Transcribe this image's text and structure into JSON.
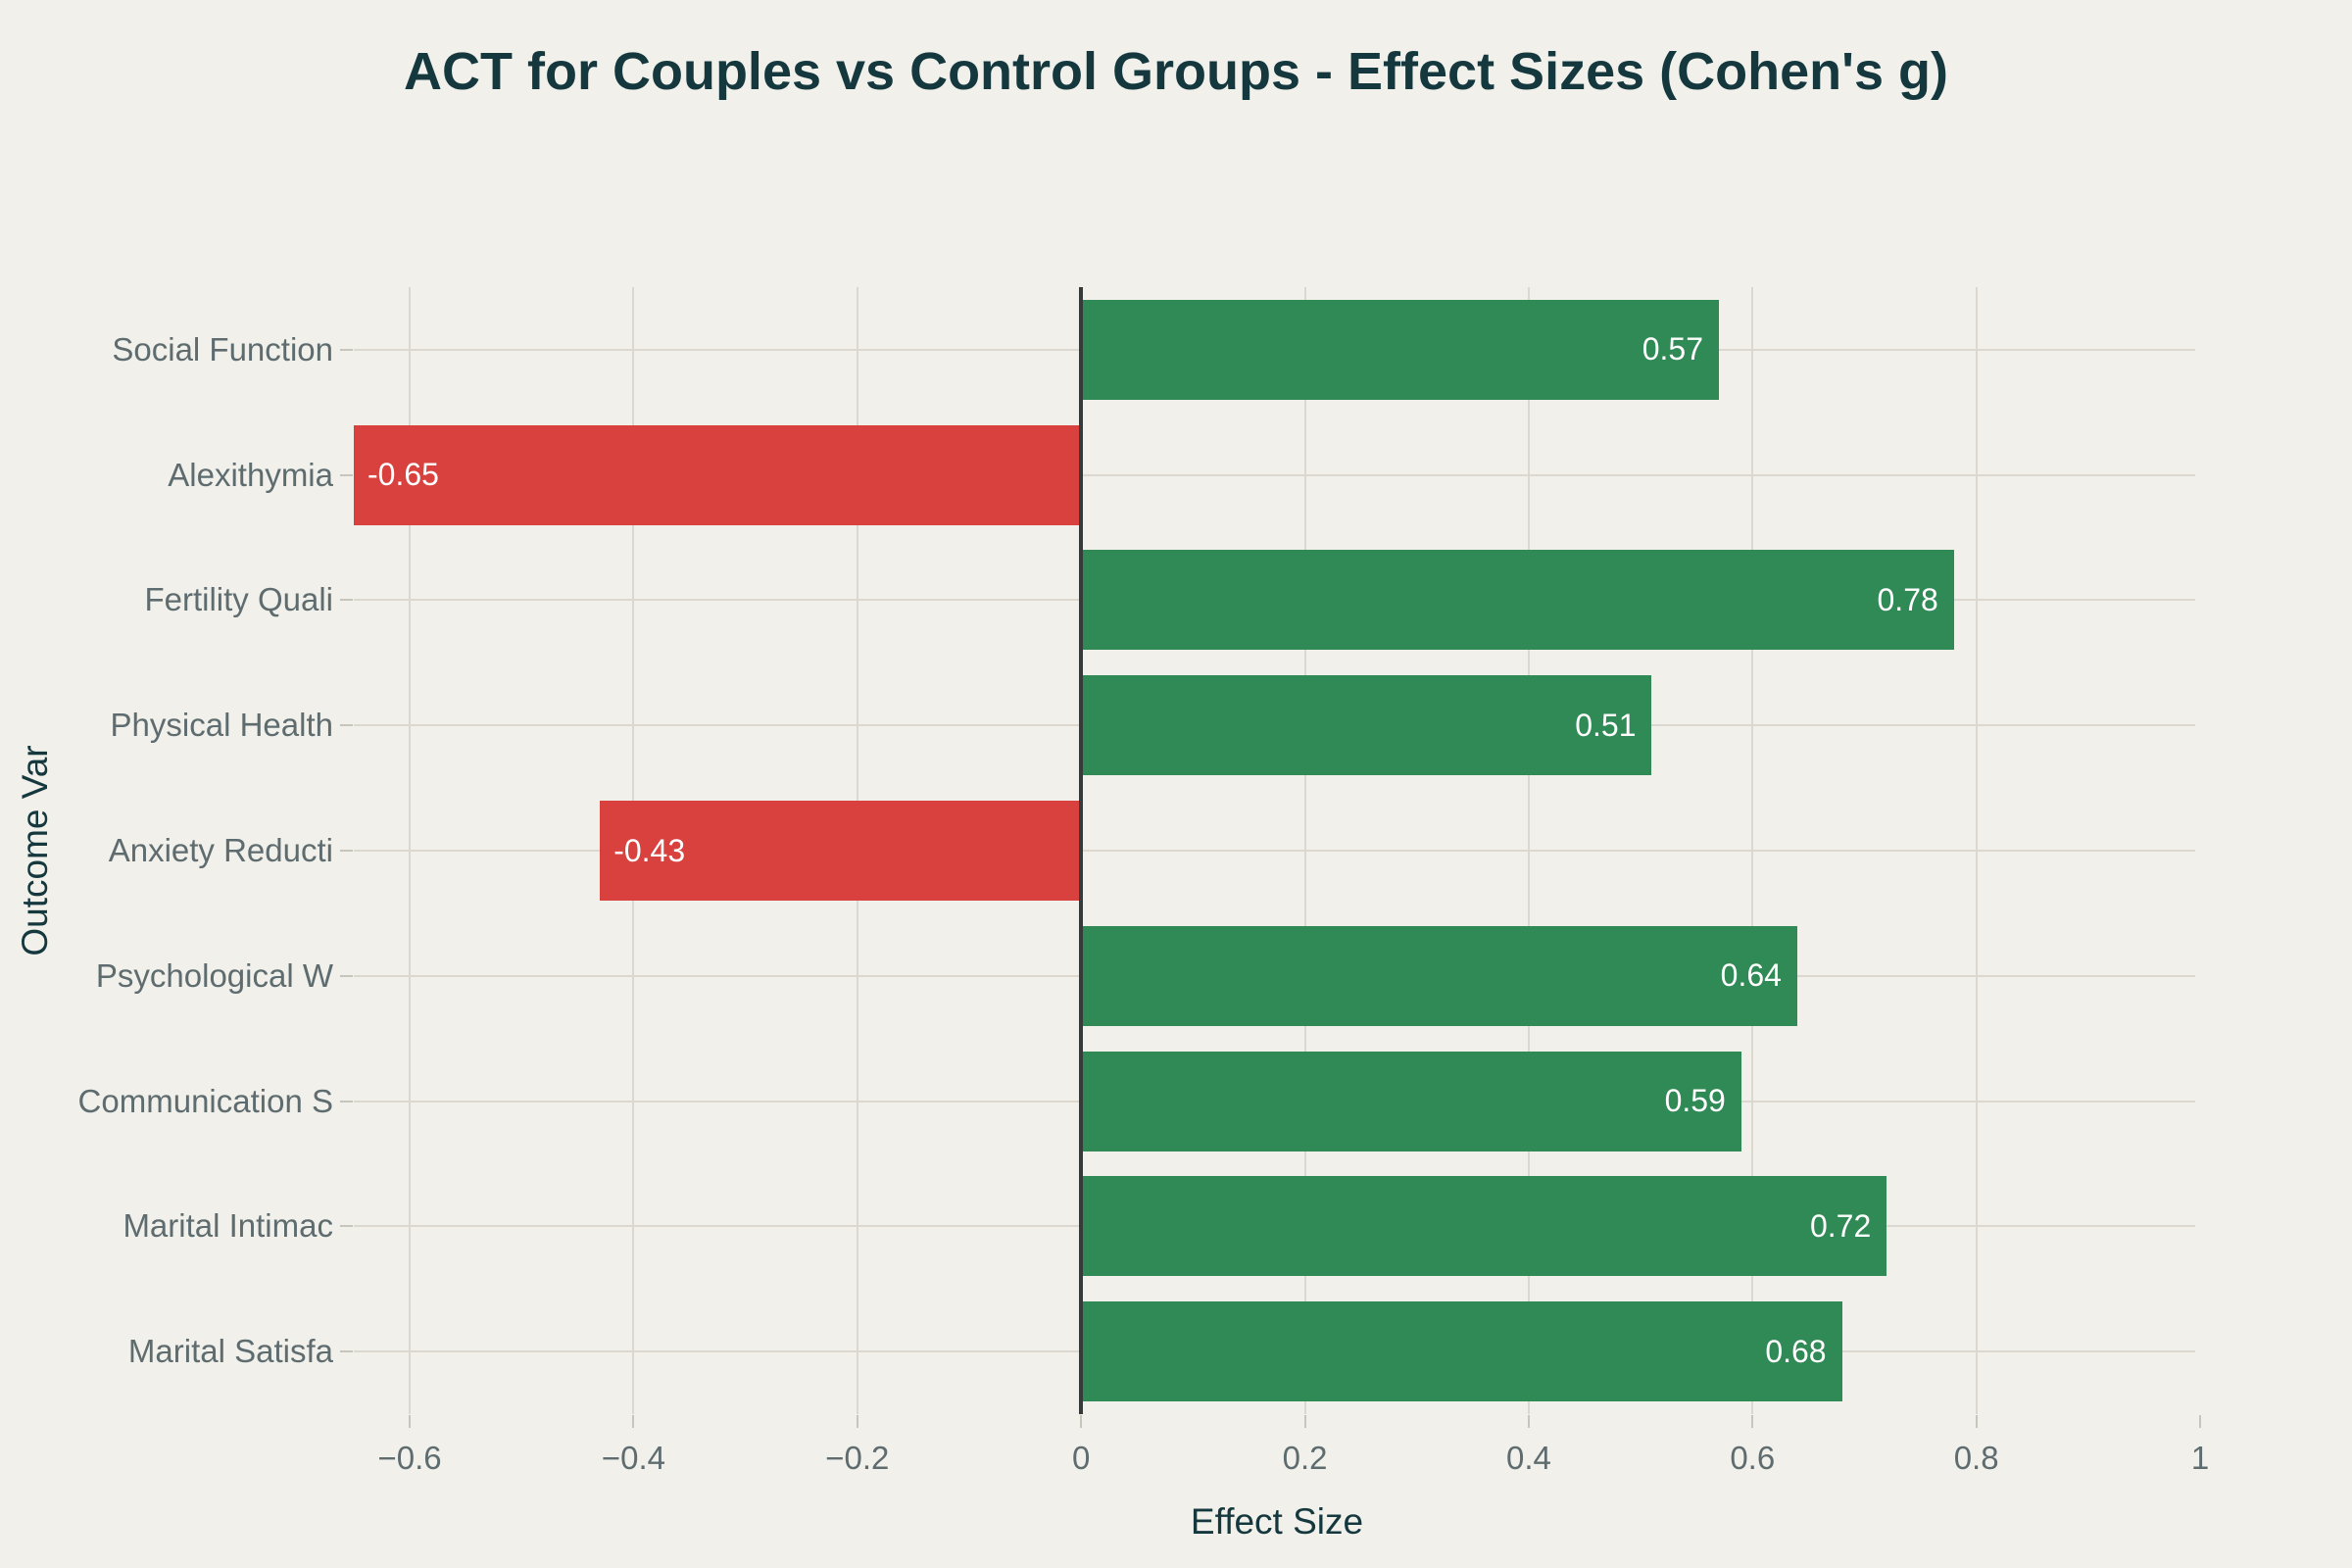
{
  "chart_data": {
    "type": "bar",
    "orientation": "horizontal",
    "title": "ACT for Couples vs Control Groups - Effect Sizes (Cohen's g)",
    "xlabel": "Effect Size",
    "ylabel": "Outcome Var",
    "categories": [
      "Social Function",
      "Alexithymia",
      "Fertility Quali",
      "Physical Health",
      "Anxiety Reducti",
      "Psychological W",
      "Communication S",
      "Marital Intimac",
      "Marital Satisfa"
    ],
    "values": [
      0.57,
      -0.65,
      0.78,
      0.51,
      -0.43,
      0.64,
      0.59,
      0.72,
      0.68
    ],
    "value_labels": [
      "0.57",
      "-0.65",
      "0.78",
      "0.51",
      "-0.43",
      "0.64",
      "0.59",
      "0.72",
      "0.68"
    ],
    "xlim": [
      -0.65,
      1.0
    ],
    "xticks": [
      -0.6,
      -0.4,
      -0.2,
      0,
      0.2,
      0.4,
      0.6,
      0.8,
      1
    ],
    "xtick_labels": [
      "−0.6",
      "−0.4",
      "−0.2",
      "0",
      "0.2",
      "0.4",
      "0.6",
      "0.8",
      "1"
    ],
    "grid": true,
    "legend": "none",
    "bar_label_position": "inside-end",
    "colors": {
      "positive_bar": "#2f8a56",
      "negative_bar": "#d9413f",
      "background": "#f1f0ea",
      "grid_line": "#dcd8cf",
      "zero_line": "#363a3b",
      "tick_mark": "#c8c5bc",
      "axis_title_text": "#14383e",
      "title_text": "#14383e",
      "tick_text": "#5e6c70",
      "bar_label_text": "#ffffff"
    }
  }
}
